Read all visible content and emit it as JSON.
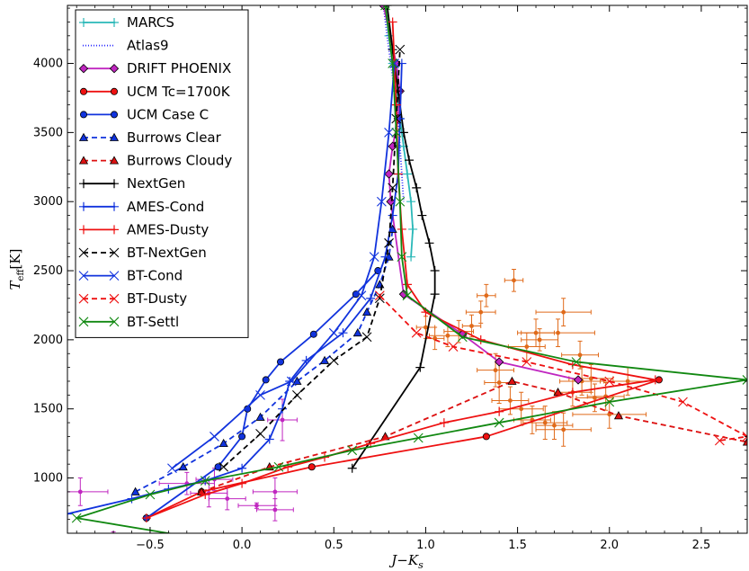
{
  "chart_data": {
    "type": "line",
    "xlabel": "J−K",
    "xlabel_sub": "s",
    "ylabel": "T",
    "ylabel_sub": "eff",
    "ylabel_unit": "[K]",
    "xlim": [
      -0.95,
      2.75
    ],
    "ylim": [
      600,
      4420
    ],
    "xticks": [
      -0.5,
      0.0,
      0.5,
      1.0,
      1.5,
      2.0,
      2.5
    ],
    "xtick_labels": [
      "−0.5",
      "0.0",
      "0.5",
      "1.0",
      "1.5",
      "2.0",
      "2.5"
    ],
    "yticks": [
      1000,
      1500,
      2000,
      2500,
      3000,
      3500,
      4000
    ],
    "ytick_labels": [
      "1000",
      "1500",
      "2000",
      "2500",
      "3000",
      "3500",
      "4000"
    ],
    "legend_position": "top-left",
    "series": [
      {
        "name": "MARCS",
        "color": "#2ab8b8",
        "dash": "",
        "marker": "plus",
        "x": [
          0.78,
          0.8,
          0.82,
          0.84,
          0.86,
          0.88,
          0.9,
          0.92,
          0.93,
          0.92
        ],
        "y": [
          4420,
          4200,
          4000,
          3800,
          3600,
          3400,
          3200,
          3000,
          2800,
          2600
        ]
      },
      {
        "name": "Atlas9",
        "color": "#2a2aff",
        "dash": "1,2",
        "marker": "none",
        "x": [
          0.77,
          0.79,
          0.81,
          0.83,
          0.85,
          0.86,
          0.87,
          0.88
        ],
        "y": [
          4420,
          4200,
          4000,
          3800,
          3600,
          3400,
          3200,
          3000
        ]
      },
      {
        "name": "DRIFT PHOENIX",
        "color": "#c026c0",
        "dash": "",
        "marker": "diamond",
        "x": [
          0.77,
          0.84,
          0.86,
          0.85,
          0.82,
          0.8,
          0.81,
          0.88,
          1.2,
          1.4,
          1.83
        ],
        "y": [
          4420,
          4000,
          3800,
          3600,
          3400,
          3200,
          3000,
          2330,
          2040,
          1840,
          1710
        ]
      },
      {
        "name": "UCM Tc=1700K",
        "color": "#ee1111",
        "dash": "",
        "marker": "circle",
        "x": [
          -0.52,
          -0.22,
          0.38,
          1.33,
          2.27
        ],
        "y": [
          710,
          900,
          1080,
          1300,
          1710
        ]
      },
      {
        "name": "UCM Case C",
        "color": "#1133dd",
        "dash": "",
        "marker": "circle",
        "x": [
          -0.52,
          -0.13,
          0.0,
          0.03,
          0.13,
          0.21,
          0.39,
          0.62,
          0.74
        ],
        "y": [
          710,
          1080,
          1300,
          1500,
          1710,
          1840,
          2040,
          2330,
          2500
        ]
      },
      {
        "name": "Burrows Clear",
        "color": "#1133dd",
        "dash": "6,4",
        "marker": "triangle",
        "x": [
          -0.58,
          -0.32,
          -0.1,
          0.1,
          0.3,
          0.45,
          0.63,
          0.68,
          0.75,
          0.8,
          0.82
        ],
        "y": [
          900,
          1080,
          1250,
          1440,
          1700,
          1850,
          2050,
          2200,
          2400,
          2600,
          2800
        ]
      },
      {
        "name": "Burrows Cloudy",
        "color": "#dd1111",
        "dash": "6,4",
        "marker": "triangle",
        "x": [
          -0.22,
          0.15,
          0.78,
          1.47,
          1.72,
          2.05,
          2.75
        ],
        "y": [
          900,
          1080,
          1300,
          1700,
          1620,
          1450,
          1260
        ]
      },
      {
        "name": "NextGen",
        "color": "#000000",
        "dash": "",
        "marker": "plus",
        "x": [
          0.6,
          0.97,
          1.05,
          1.05,
          1.02,
          0.98,
          0.95,
          0.91,
          0.88,
          0.85,
          0.82,
          0.79
        ],
        "y": [
          1070,
          1800,
          2330,
          2500,
          2700,
          2900,
          3100,
          3300,
          3500,
          3800,
          4100,
          4420
        ]
      },
      {
        "name": "AMES-Cond",
        "color": "#1133dd",
        "dash": "",
        "marker": "plus",
        "x": [
          -0.95,
          -0.6,
          -0.4,
          -0.2,
          0.0,
          0.15,
          0.22,
          0.26,
          0.35,
          0.55,
          0.7,
          0.78,
          0.82,
          0.85,
          0.86,
          0.87
        ],
        "y": [
          740,
          850,
          920,
          980,
          1070,
          1280,
          1500,
          1700,
          1850,
          2050,
          2300,
          2600,
          2900,
          3200,
          3600,
          4000
        ]
      },
      {
        "name": "AMES-Dusty",
        "color": "#ee1111",
        "dash": "",
        "marker": "plus",
        "x": [
          -0.52,
          -0.2,
          0.0,
          0.25,
          0.45,
          0.7,
          1.1,
          1.4,
          1.8,
          2.25,
          1.8,
          1.3,
          1.0,
          0.9,
          0.87,
          0.85,
          0.84,
          0.82
        ],
        "y": [
          710,
          880,
          960,
          1080,
          1150,
          1250,
          1400,
          1480,
          1620,
          1710,
          1820,
          2000,
          2200,
          2400,
          2800,
          3200,
          3700,
          4300
        ]
      },
      {
        "name": "BT-NextGen",
        "color": "#000000",
        "dash": "6,4",
        "marker": "x",
        "x": [
          -0.1,
          0.1,
          0.3,
          0.5,
          0.68,
          0.75,
          0.8,
          0.82,
          0.84,
          0.86
        ],
        "y": [
          1080,
          1320,
          1600,
          1850,
          2020,
          2300,
          2700,
          3100,
          3600,
          4100
        ]
      },
      {
        "name": "BT-Cond",
        "color": "#1133dd",
        "dash": "",
        "marker": "x",
        "x": [
          -0.38,
          -0.15,
          0.1,
          0.27,
          0.5,
          0.65,
          0.72,
          0.76,
          0.8,
          0.83
        ],
        "y": [
          1070,
          1300,
          1600,
          1700,
          2050,
          2320,
          2600,
          3000,
          3500,
          4000
        ]
      },
      {
        "name": "BT-Dusty",
        "color": "#ee1111",
        "dash": "6,4",
        "marker": "x",
        "x": [
          0.75,
          0.95,
          1.15,
          1.55,
          2.0,
          2.4,
          2.75,
          2.6
        ],
        "y": [
          2320,
          2050,
          1950,
          1840,
          1700,
          1550,
          1300,
          1270
        ]
      },
      {
        "name": "BT-Settl",
        "color": "#118811",
        "dash": "",
        "marker": "x",
        "x": [
          -0.22,
          -0.9,
          -0.5,
          -0.2,
          0.2,
          0.6,
          0.96,
          1.4,
          2.0,
          2.75,
          1.82,
          1.2,
          0.9,
          0.87,
          0.86,
          0.84,
          0.82,
          0.78
        ],
        "y": [
          560,
          710,
          880,
          980,
          1080,
          1200,
          1290,
          1400,
          1550,
          1710,
          1840,
          2020,
          2320,
          2600,
          3000,
          3500,
          4000,
          4420
        ]
      }
    ],
    "observations": [
      {
        "group": "orange",
        "color": "#e06a1a",
        "x": [
          1.38,
          1.4,
          1.46,
          1.52,
          1.58,
          1.65,
          1.7,
          1.75,
          1.8,
          1.85,
          1.92,
          2.0,
          2.1,
          1.55,
          1.6,
          1.48,
          1.33,
          1.3,
          1.25,
          1.18,
          1.12,
          1.05,
          1.0,
          1.72,
          1.62,
          1.75,
          1.84,
          1.9,
          1.98
        ],
        "y": [
          1780,
          1690,
          1560,
          1500,
          1420,
          1400,
          1380,
          1350,
          1620,
          1700,
          1580,
          1460,
          1700,
          1950,
          2050,
          2430,
          2320,
          2200,
          2100,
          2060,
          2030,
          2010,
          2090,
          2050,
          2000,
          2200,
          1890,
          1720,
          1590
        ],
        "xerr": [
          0.1,
          0.08,
          0.1,
          0.12,
          0.1,
          0.12,
          0.1,
          0.15,
          0.1,
          0.12,
          0.1,
          0.2,
          0.15,
          0.1,
          0.1,
          0.05,
          0.05,
          0.08,
          0.05,
          0.08,
          0.1,
          0.05,
          0.05,
          0.2,
          0.1,
          0.15,
          0.1,
          0.12,
          0.1
        ],
        "yerr": [
          120,
          150,
          100,
          120,
          100,
          120,
          100,
          120,
          100,
          100,
          100,
          100,
          100,
          100,
          100,
          80,
          80,
          80,
          80,
          80,
          80,
          80,
          80,
          100,
          80,
          100,
          100,
          100,
          100
        ]
      },
      {
        "group": "magenta",
        "color": "#c026c0",
        "x": [
          -0.88,
          -0.7,
          -0.3,
          -0.18,
          -0.15,
          -0.08,
          0.08,
          0.18,
          0.22,
          0.18
        ],
        "y": [
          900,
          580,
          960,
          890,
          990,
          850,
          800,
          900,
          1420,
          770
        ],
        "xerr": [
          0.15,
          0.06,
          0.15,
          0.1,
          0.1,
          0.1,
          0.1,
          0.12,
          0.08,
          0.1
        ],
        "yerr": [
          100,
          30,
          80,
          100,
          80,
          80,
          20,
          100,
          150,
          80
        ]
      }
    ]
  }
}
